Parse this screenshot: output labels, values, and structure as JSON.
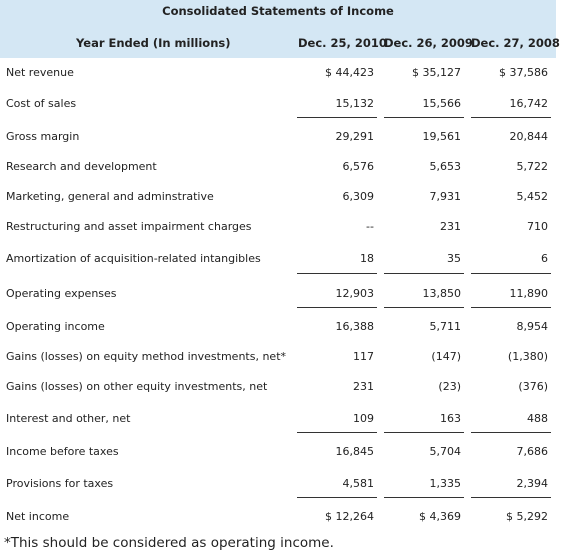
{
  "statement": {
    "title": "Consolidated Statements of Income",
    "year_label": "Year Ended (In millions)",
    "columns": [
      "Dec. 25, 2010",
      "Dec. 26, 2009",
      "Dec. 27, 2008"
    ],
    "rows": [
      {
        "label": "Net revenue",
        "values": [
          "$ 44,423",
          "$ 35,127",
          "$ 37,586"
        ]
      },
      {
        "label": "Cost of sales",
        "values": [
          "15,132",
          "15,566",
          "16,742"
        ]
      },
      {
        "label": "Gross margin",
        "values": [
          "29,291",
          "19,561",
          "20,844"
        ]
      },
      {
        "label": "Research and development",
        "values": [
          "6,576",
          "5,653",
          "5,722"
        ]
      },
      {
        "label": "Marketing, general and adminstrative",
        "values": [
          "6,309",
          "7,931",
          "5,452"
        ]
      },
      {
        "label": "Restructuring and asset impairment charges",
        "values": [
          "--",
          "231",
          "710"
        ]
      },
      {
        "label": "Amortization of acquisition-related intangibles",
        "values": [
          "18",
          "35",
          "6"
        ]
      },
      {
        "label": "Operating expenses",
        "values": [
          "12,903",
          "13,850",
          "11,890"
        ]
      },
      {
        "label": "Operating income",
        "values": [
          "16,388",
          "5,711",
          "8,954"
        ]
      },
      {
        "label": "Gains (losses) on equity method investments, net*",
        "values": [
          "117",
          "(147)",
          "(1,380)"
        ]
      },
      {
        "label": "Gains (losses) on other equity investments, net",
        "values": [
          "231",
          "(23)",
          "(376)"
        ]
      },
      {
        "label": "Interest and other, net",
        "values": [
          "109",
          "163",
          "488"
        ]
      },
      {
        "label": "Income before taxes",
        "values": [
          "16,845",
          "5,704",
          "7,686"
        ]
      },
      {
        "label": "Provisions for taxes",
        "values": [
          "4,581",
          "1,335",
          "2,394"
        ]
      },
      {
        "label": "Net income",
        "values": [
          "$ 12,264",
          "$ 4,369",
          "$ 5,292"
        ]
      }
    ]
  },
  "footnote": "*This should be considered as operating income."
}
